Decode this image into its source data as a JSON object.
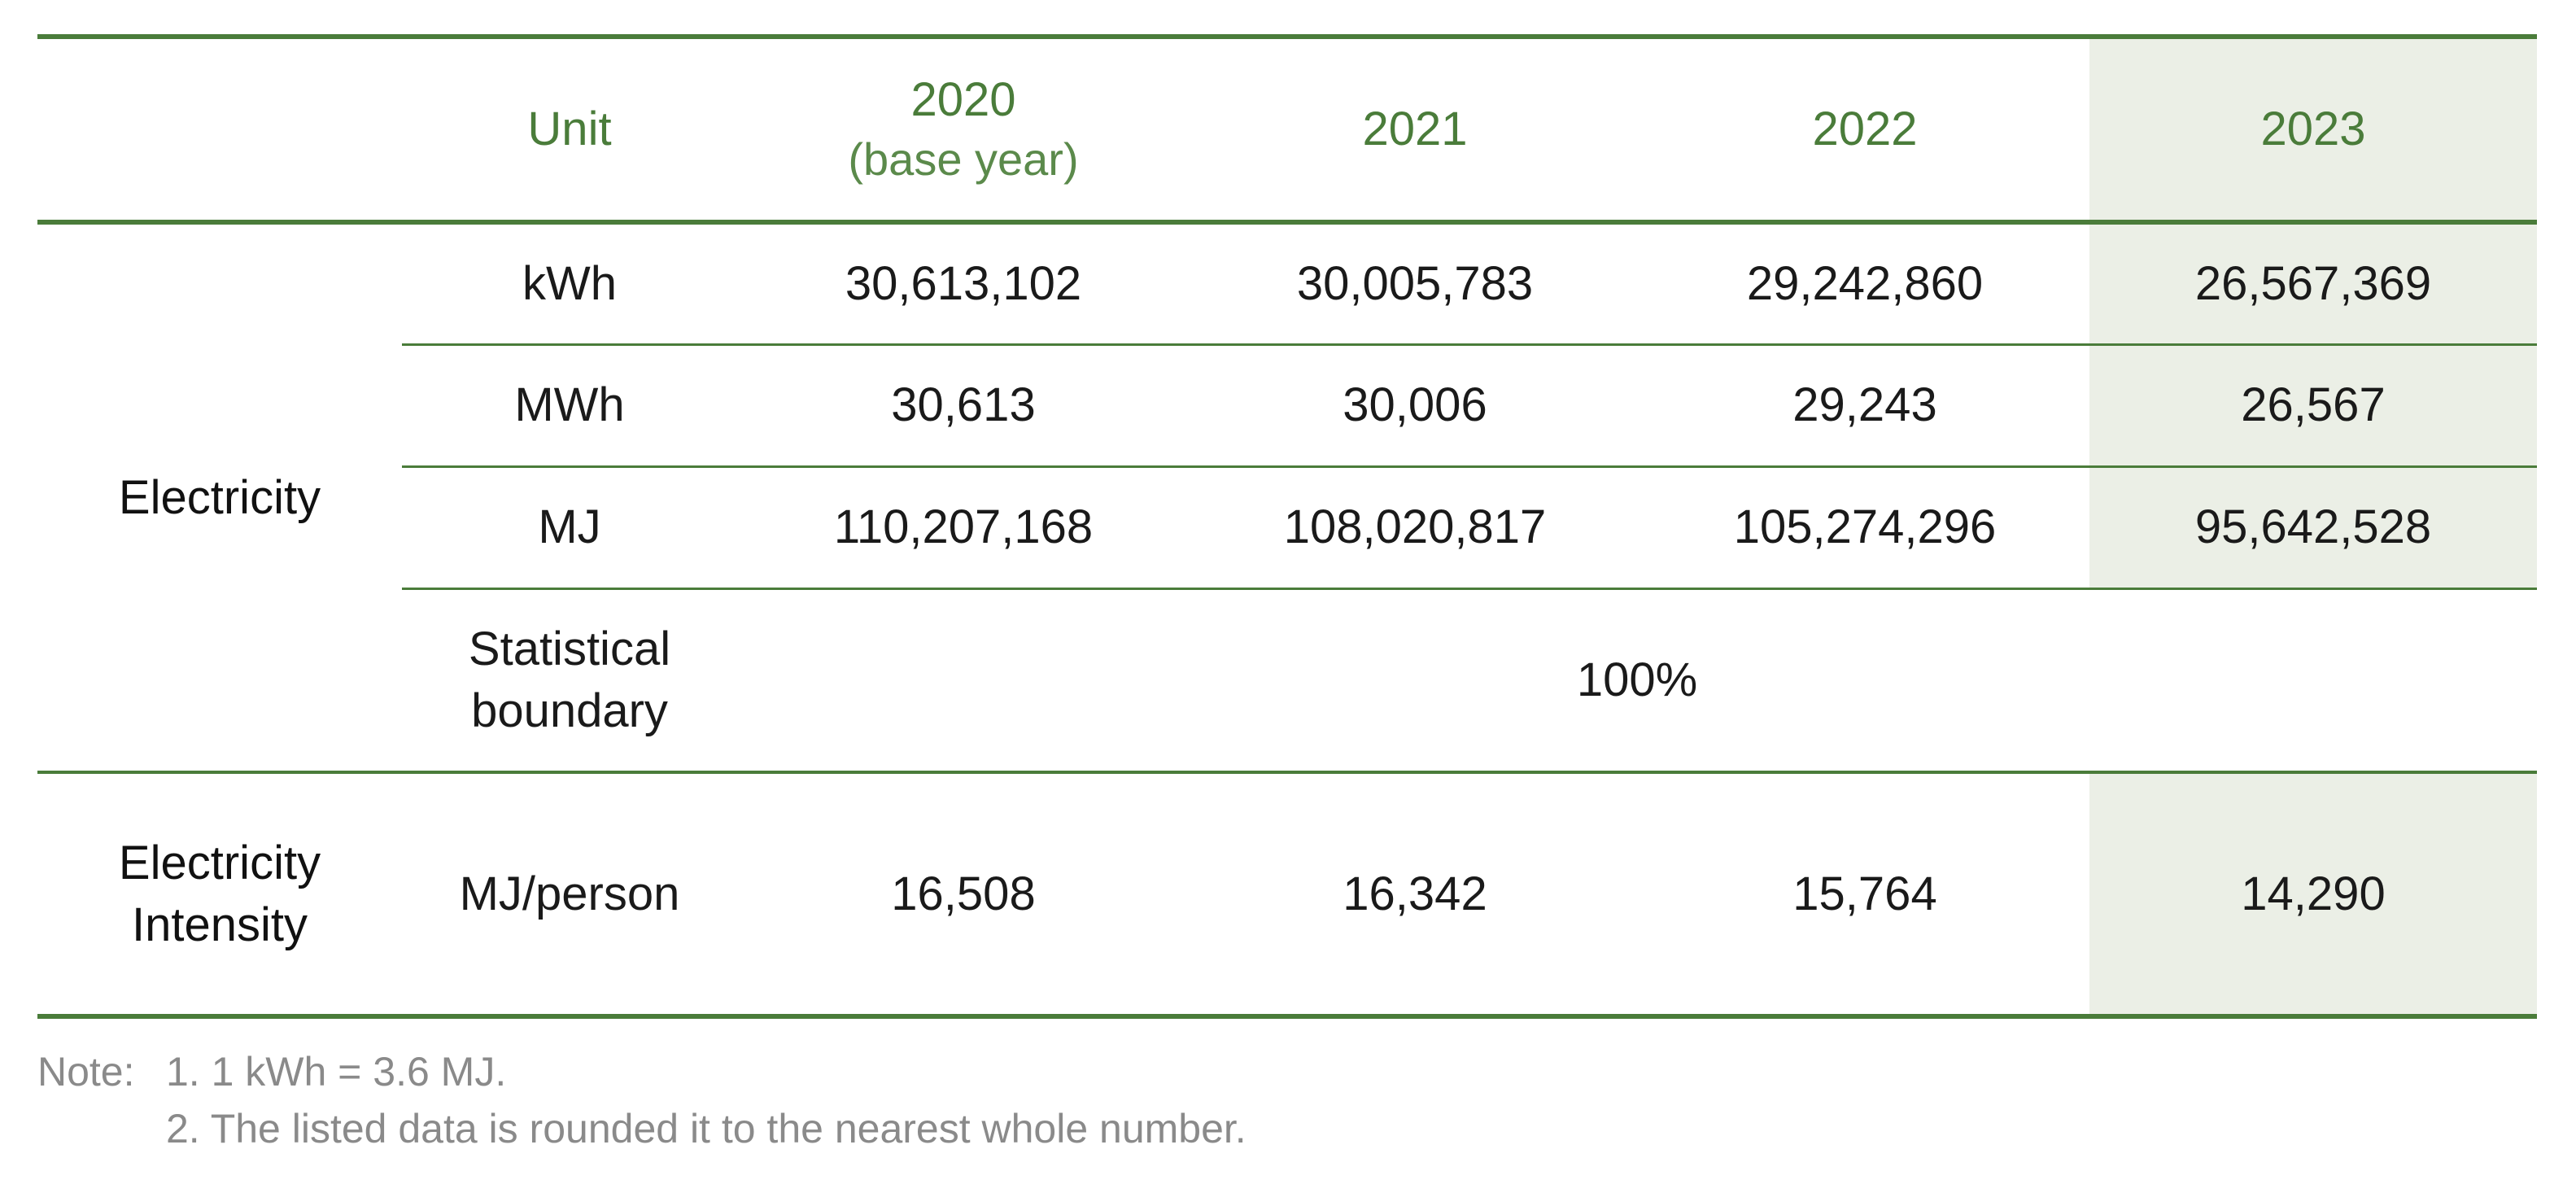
{
  "header": {
    "unit": "Unit",
    "years": [
      {
        "label": "2020",
        "sub": "(base year)"
      },
      {
        "label": "2021",
        "sub": ""
      },
      {
        "label": "2022",
        "sub": ""
      },
      {
        "label": "2023",
        "sub": ""
      }
    ]
  },
  "electricity": {
    "label": "Electricity",
    "rows": [
      {
        "unit": "kWh",
        "values": [
          "30,613,102",
          "30,005,783",
          "29,242,860",
          "26,567,369"
        ]
      },
      {
        "unit": "MWh",
        "values": [
          "30,613",
          "30,006",
          "29,243",
          "26,567"
        ]
      },
      {
        "unit": "MJ",
        "values": [
          "110,207,168",
          "108,020,817",
          "105,274,296",
          "95,642,528"
        ]
      }
    ],
    "boundary": {
      "unit_line1": "Statistical",
      "unit_line2": "boundary",
      "value": "100%"
    }
  },
  "intensity": {
    "label_line1": "Electricity",
    "label_line2": "Intensity",
    "unit": "MJ/person",
    "values": [
      "16,508",
      "16,342",
      "15,764",
      "14,290"
    ]
  },
  "notes": {
    "prefix": "Note:",
    "line1": "1. 1 kWh = 3.6 MJ.",
    "line2": "2. The listed data is rounded it to the nearest whole number."
  },
  "colors": {
    "accent": "#4a7c3a",
    "highlight": "#ebefe6"
  }
}
